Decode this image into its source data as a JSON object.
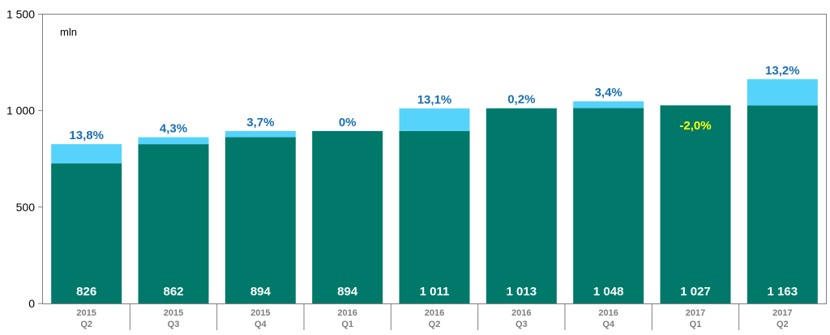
{
  "chart_data": {
    "type": "bar",
    "unit_label": "mln",
    "ylim": [
      0,
      1500
    ],
    "yticks": [
      0,
      500,
      1000,
      1500
    ],
    "ytick_labels": [
      "0",
      "500",
      "1 000",
      "1 500"
    ],
    "categories": [
      [
        "2015",
        "Q2"
      ],
      [
        "2015",
        "Q3"
      ],
      [
        "2015",
        "Q4"
      ],
      [
        "2016",
        "Q1"
      ],
      [
        "2016",
        "Q2"
      ],
      [
        "2016",
        "Q3"
      ],
      [
        "2016",
        "Q4"
      ],
      [
        "2017",
        "Q1"
      ],
      [
        "2017",
        "Q2"
      ]
    ],
    "series": [
      {
        "values": [
          726,
          826,
          862,
          894,
          894,
          1011,
          1013,
          1027,
          1027
        ]
      },
      {
        "values": [
          100,
          36,
          32,
          0,
          117,
          2,
          35,
          0,
          136
        ]
      }
    ],
    "totals": [
      826,
      862,
      894,
      894,
      1011,
      1013,
      1048,
      1027,
      1163
    ],
    "value_labels": [
      "826",
      "862",
      "894",
      "894",
      "1 011",
      "1 013",
      "1 048",
      "1 027",
      "1 163"
    ],
    "growth_labels": [
      "13,8%",
      "4,3%",
      "3,7%",
      "0%",
      "13,1%",
      "0,2%",
      "3,4%",
      "-2,0%",
      "13,2%"
    ],
    "negative_growth_index": [
      7
    ],
    "colors": {
      "base": "#00796b",
      "growth": "#55d3fb",
      "growth_text": "#1a6fb4",
      "negative_text": "#ffff00",
      "value_text": "#ffffff"
    },
    "grid": false,
    "legend": "none"
  }
}
